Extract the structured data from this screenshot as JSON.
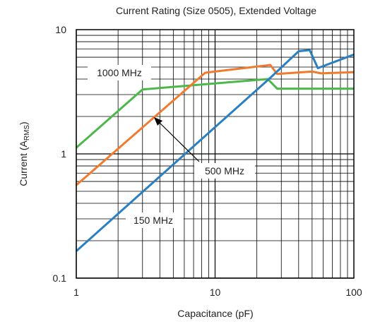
{
  "chart_data": {
    "type": "line",
    "title": "Current Rating (Size 0505), Extended Voltage",
    "xlabel": "Capacitance (pF)",
    "ylabel": {
      "main": "Current (A",
      "sub": "RMS",
      "end": ")"
    },
    "xscale": "log",
    "yscale": "log",
    "xlim": [
      1,
      100
    ],
    "ylim": [
      0.1,
      10
    ],
    "grid": true,
    "x_ticks": [
      {
        "value": 1,
        "label": "1"
      },
      {
        "value": 10,
        "label": "10"
      },
      {
        "value": 100,
        "label": "100"
      }
    ],
    "y_ticks": [
      {
        "value": 0.1,
        "label": "0.1"
      },
      {
        "value": 1,
        "label": "1"
      },
      {
        "value": 10,
        "label": "10"
      }
    ],
    "series": [
      {
        "name": "150 MHz",
        "color": "#2a7fc1",
        "points": [
          [
            1,
            0.165
          ],
          [
            25,
            4.1
          ],
          [
            40,
            6.7
          ],
          [
            48,
            6.85
          ],
          [
            55,
            4.9
          ],
          [
            100,
            6.3
          ]
        ]
      },
      {
        "name": "500 MHz",
        "color": "#f07a2e",
        "points": [
          [
            1,
            0.56
          ],
          [
            8.5,
            4.5
          ],
          [
            25,
            5.2
          ],
          [
            28,
            4.4
          ],
          [
            50,
            4.6
          ],
          [
            58,
            4.45
          ],
          [
            100,
            4.55
          ]
        ]
      },
      {
        "name": "1000 MHz",
        "color": "#4db84a",
        "points": [
          [
            1,
            1.12
          ],
          [
            3,
            3.3
          ],
          [
            24,
            4.0
          ],
          [
            28,
            3.35
          ],
          [
            100,
            3.35
          ]
        ]
      }
    ],
    "annotations": [
      {
        "label": "1000 MHz",
        "series": "1000 MHz"
      },
      {
        "label": "500 MHz",
        "series": "500 MHz"
      },
      {
        "label": "150 MHz",
        "series": "150 MHz"
      }
    ]
  }
}
